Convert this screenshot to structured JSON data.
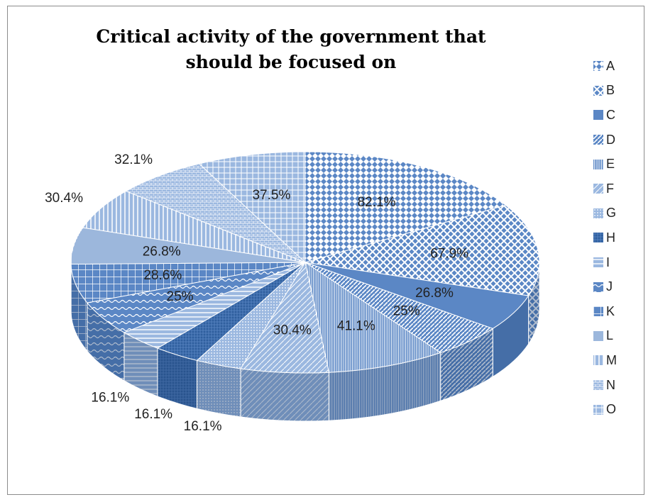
{
  "chart_data": {
    "type": "pie",
    "title": "Critical activity of the government that should be focused on",
    "legend_position": "right",
    "categories": [
      "A",
      "B",
      "C",
      "D",
      "E",
      "F",
      "G",
      "H",
      "I",
      "J",
      "K",
      "L",
      "M",
      "N",
      "O"
    ],
    "values": [
      82.1,
      67.9,
      26.8,
      25,
      41.1,
      30.4,
      16.1,
      16.1,
      16.1,
      25,
      28.6,
      26.8,
      30.4,
      32.1,
      37.5
    ],
    "labels": [
      "82.1%",
      "67.9%",
      "26.8%",
      "25%",
      "41.1%",
      "30.4%",
      "16.1%",
      "16.1%",
      "16.1%",
      "25%",
      "28.6%",
      "26.8%",
      "30.4%",
      "32.1%",
      "37.5%"
    ]
  },
  "colors": {
    "base": "#5b87c5",
    "light": "#9bb8e0",
    "dark": "#2f5f9e",
    "line": "#ffffff"
  }
}
